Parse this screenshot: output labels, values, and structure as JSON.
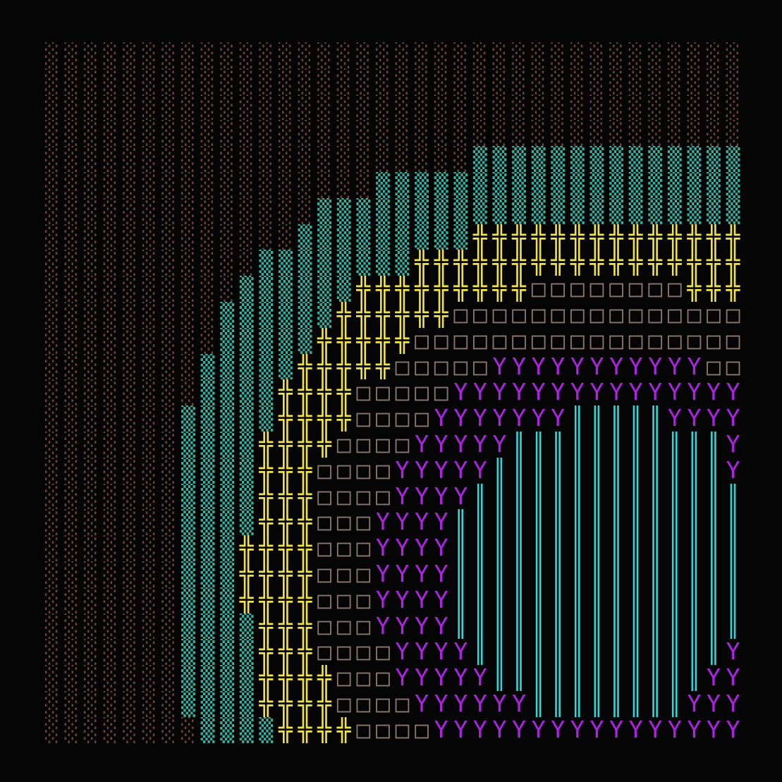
{
  "grid": {
    "rows": [
      "░░░░░░░░░░░░░░░░░░░░░░░░░░░░░░░░░░░░",
      "░░░░░░░░░░░░░░░░░░░░░░░░░░░░░░░░░░░░",
      "░░░░░░░░░░░░░░░░░░░░░░░░░░░░░░░░░░░░",
      "░░░░░░░░░░░░░░░░░░░░░░░░░░░░░░░░░░░░",
      "░░░░░░░░░░░░░░░░░░░░░░▒▒▒▒▒▒▒▒▒▒▒▒▒▒",
      "░░░░░░░░░░░░░░░░░▒▒▒▒▒▒▒▒▒▒▒▒▒▒▒▒▒▒▒",
      "░░░░░░░░░░░░░░▒▒▒▒▒▒▒▒▒▒▒▒▒▒▒▒▒▒▒▒▒▒",
      "░░░░░░░░░░░░░▒▒▒▒▒▒▒▒▒╬╬╬╬╬╬╬╬╬╬╬╬╬╬",
      "░░░░░░░░░░░▒▒▒▒▒▒▒▒╬╬╬╬╬╬╬╬╬╬╬╬╬╬╬╬╬",
      "░░░░░░░░░░▒▒▒▒▒▒╬╬╬╬╬╬╬╬╬□□□□□□□□╬╬╬",
      "░░░░░░░░░▒▒▒▒▒▒╬╬╬╬╬╬□□□□□□□□□□□□□□□",
      "░░░░░░░░░▒▒▒▒▒╬╬╬╬╬□□□□□□□□□□□□□□□□□",
      "░░░░░░░░▒▒▒▒▒╬╬╬╬╬□□□□□YYYYYYYYYYY□□",
      "░░░░░░░░▒▒▒▒╬╬╬╬□□□□□YYYYYYYYYYYYYYY",
      "░░░░░░░▒▒▒▒▒╬╬╬╬□□□□YYYYYYY║║║║║YYYY",
      "░░░░░░░▒▒▒▒╬╬╬╬□□□□YYYYY║║║║║║║║║║║Y",
      "░░░░░░░▒▒▒▒╬╬╬□□□□YYYYY║║║║║║║║║║║║Y",
      "░░░░░░░▒▒▒▒╬╬╬□□□□YYYY║║║║║║║║║║║║║║",
      "░░░░░░░▒▒▒▒╬╬╬□□□YYYY║║║║║║║║║║║║║║║",
      "░░░░░░░▒▒▒╬╬╬╬□□□YYYY║║║║║║║║║║║║║║║",
      "░░░░░░░▒▒▒╬╬╬╬□□□YYYY║║║║║║║║║║║║║║║",
      "░░░░░░░▒▒▒╬╬╬╬□□□YYYY║║║║║║║║║║║║║║║",
      "░░░░░░░▒▒▒▒╬╬╬□□□YYYY║║║║║║║║║║║║║║║",
      "░░░░░░░▒▒▒▒╬╬╬□□□□YYYY║║║║║║║║║║║║║Y",
      "░░░░░░░▒▒▒▒╬╬╬╬□□□YYYYY║║║║║║║║║║║YY",
      "░░░░░░░▒▒▒▒╬╬╬╬□□□□YYYYYY║║║║║║║║YYY",
      "░░░░░░░░▒▒▒▒╬╬╬╬□□□□YYYYYYYYYYYYYYYY"
    ],
    "palette": {
      "░": "#6a4438",
      "▒": "#35b3a2",
      "╬": "#f0e24a",
      "□": "#8c7670",
      "Y": "#b022e6",
      "║": "#2fd8d8"
    }
  }
}
